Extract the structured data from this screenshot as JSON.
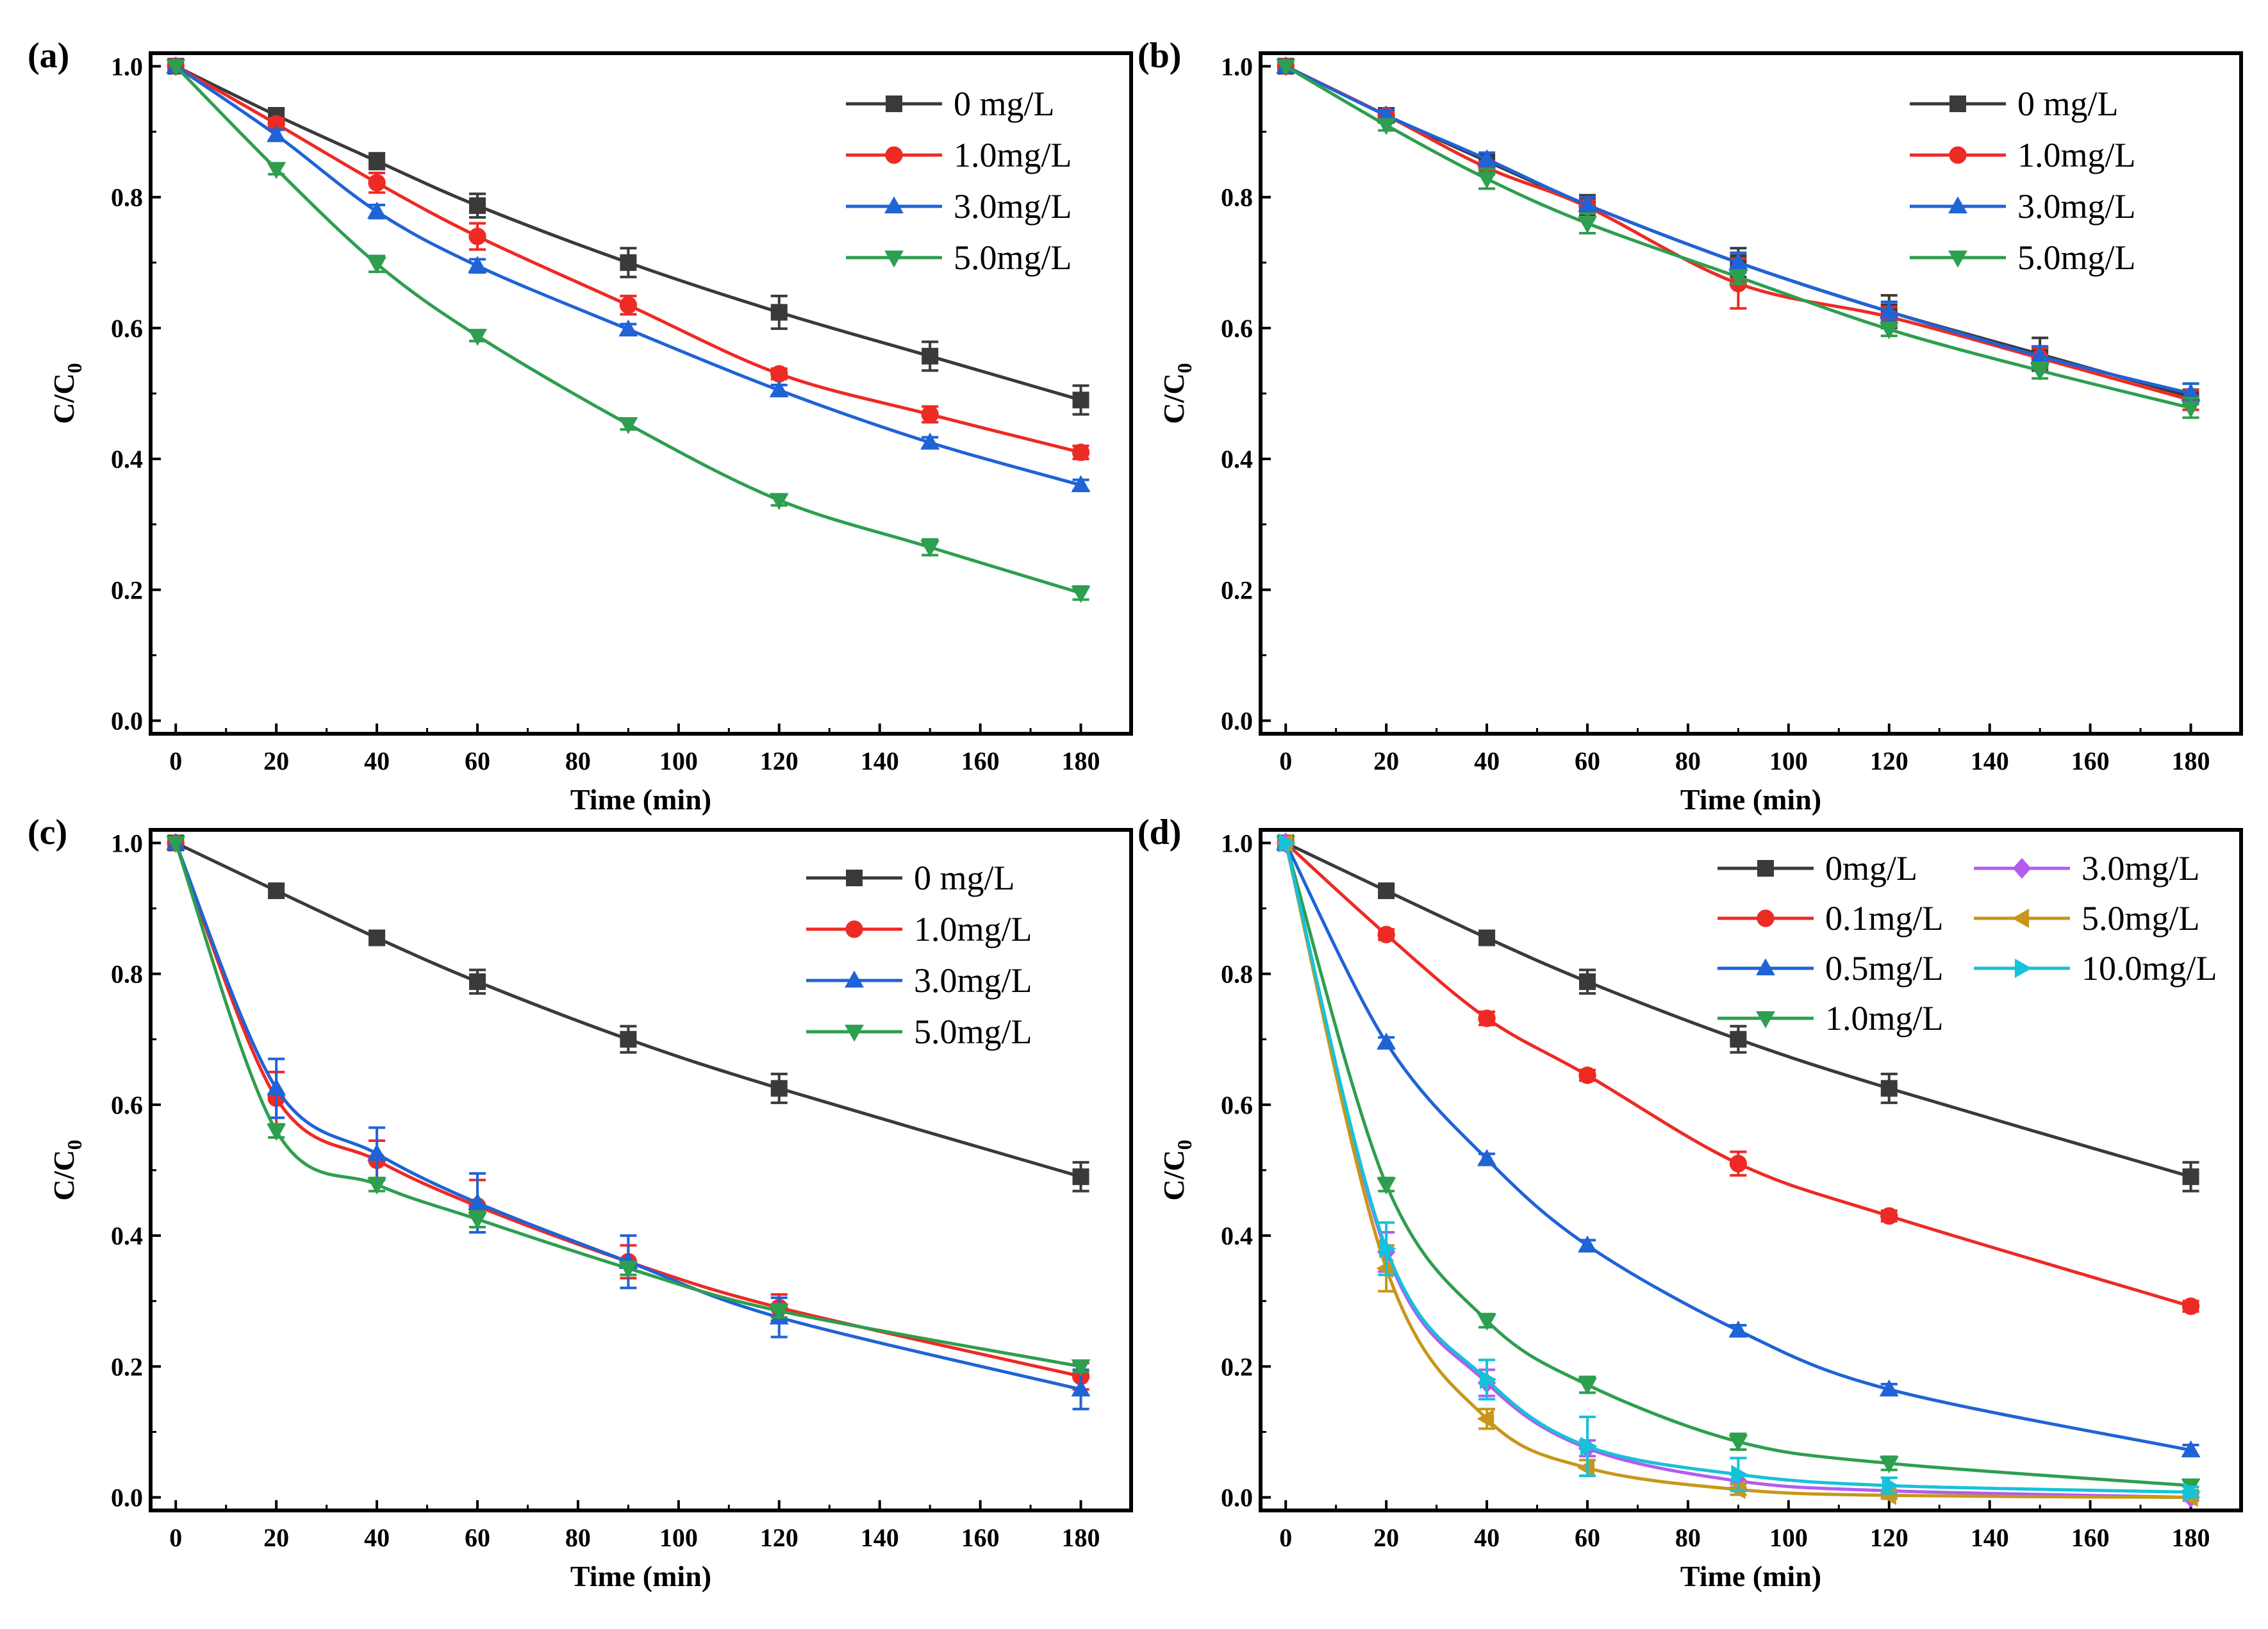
{
  "chart_data": [
    {
      "type": "line",
      "panel_label": "(a)",
      "xlabel": "Time (min)",
      "ylabel": "C/C",
      "ylabel_subscript": "0",
      "xlim": [
        -5,
        190
      ],
      "ylim": [
        -0.02,
        1.02
      ],
      "xticks": [
        0,
        20,
        40,
        60,
        80,
        100,
        120,
        140,
        160,
        180
      ],
      "yticks": [
        0.0,
        0.2,
        0.4,
        0.6,
        0.8,
        1.0
      ],
      "tick_labels_x": [
        "0",
        "20",
        "40",
        "60",
        "80",
        "100",
        "120",
        "140",
        "160",
        "180"
      ],
      "tick_labels_y": [
        "0.0",
        "0.2",
        "0.4",
        "0.6",
        "0.8",
        "1.0"
      ],
      "legend_position": "top-right",
      "legend_columns": 1,
      "x": [
        0,
        20,
        40,
        60,
        90,
        120,
        150,
        180
      ],
      "series": [
        {
          "name": "0 mg/L",
          "marker": "square",
          "color": "#3a3a3a",
          "values": [
            1.0,
            0.925,
            0.855,
            0.787,
            0.7,
            0.624,
            0.557,
            0.49
          ],
          "errors": [
            0,
            0.01,
            0.012,
            0.018,
            0.022,
            0.025,
            0.022,
            0.022
          ]
        },
        {
          "name": "1.0mg/L",
          "marker": "circle",
          "color": "#ee2a24",
          "values": [
            1.0,
            0.912,
            0.822,
            0.74,
            0.635,
            0.53,
            0.468,
            0.41
          ],
          "errors": [
            0,
            0.008,
            0.015,
            0.02,
            0.014,
            0.008,
            0.012,
            0.01
          ]
        },
        {
          "name": "3.0mg/L",
          "marker": "triangle-up",
          "color": "#1f63d6",
          "values": [
            1.0,
            0.895,
            0.778,
            0.695,
            0.598,
            0.505,
            0.425,
            0.36
          ],
          "errors": [
            0,
            0.008,
            0.01,
            0.01,
            0.008,
            0.008,
            0.008,
            0.008
          ]
        },
        {
          "name": "5.0mg/L",
          "marker": "triangle-down",
          "color": "#2e9e4f",
          "values": [
            1.0,
            0.843,
            0.698,
            0.588,
            0.453,
            0.337,
            0.265,
            0.195
          ],
          "errors": [
            0,
            0.008,
            0.012,
            0.008,
            0.008,
            0.008,
            0.012,
            0.01
          ]
        }
      ]
    },
    {
      "type": "line",
      "panel_label": "(b)",
      "xlabel": "Time (min)",
      "ylabel": "C/C",
      "ylabel_subscript": "0",
      "xlim": [
        -5,
        190
      ],
      "ylim": [
        -0.02,
        1.02
      ],
      "xticks": [
        0,
        20,
        40,
        60,
        80,
        100,
        120,
        140,
        160,
        180
      ],
      "yticks": [
        0.0,
        0.2,
        0.4,
        0.6,
        0.8,
        1.0
      ],
      "tick_labels_x": [
        "0",
        "20",
        "40",
        "60",
        "80",
        "100",
        "120",
        "140",
        "160",
        "180"
      ],
      "tick_labels_y": [
        "0.0",
        "0.2",
        "0.4",
        "0.6",
        "0.8",
        "1.0"
      ],
      "legend_position": "top-right",
      "legend_columns": 1,
      "x": [
        0,
        20,
        40,
        60,
        90,
        120,
        150,
        180
      ],
      "series": [
        {
          "name": "0 mg/L",
          "marker": "square",
          "color": "#3a3a3a",
          "values": [
            1.0,
            0.925,
            0.855,
            0.788,
            0.7,
            0.625,
            0.56,
            0.495
          ],
          "errors": [
            0,
            0.008,
            0.01,
            0.015,
            0.022,
            0.025,
            0.025,
            0.02
          ]
        },
        {
          "name": "1.0mg/L",
          "marker": "circle",
          "color": "#ee2a24",
          "values": [
            1.0,
            0.925,
            0.845,
            0.785,
            0.668,
            0.617,
            0.554,
            0.49
          ],
          "errors": [
            0,
            0.008,
            0.01,
            0.01,
            0.038,
            0.015,
            0.015,
            0.015
          ]
        },
        {
          "name": "3.0mg/L",
          "marker": "triangle-up",
          "color": "#1f63d6",
          "values": [
            1.0,
            0.925,
            0.858,
            0.788,
            0.7,
            0.625,
            0.557,
            0.5
          ],
          "errors": [
            0,
            0.008,
            0.01,
            0.012,
            0.015,
            0.015,
            0.015,
            0.015
          ]
        },
        {
          "name": "5.0mg/L",
          "marker": "triangle-down",
          "color": "#2e9e4f",
          "values": [
            1.0,
            0.91,
            0.828,
            0.76,
            0.678,
            0.598,
            0.535,
            0.478
          ],
          "errors": [
            0,
            0.008,
            0.015,
            0.015,
            0.01,
            0.01,
            0.012,
            0.015
          ]
        }
      ]
    },
    {
      "type": "line",
      "panel_label": "(c)",
      "xlabel": "Time (min)",
      "ylabel": "C/C",
      "ylabel_subscript": "0",
      "xlim": [
        -5,
        190
      ],
      "ylim": [
        -0.02,
        1.02
      ],
      "xticks": [
        0,
        20,
        40,
        60,
        80,
        100,
        120,
        140,
        160,
        180
      ],
      "yticks": [
        0.0,
        0.2,
        0.4,
        0.6,
        0.8,
        1.0
      ],
      "tick_labels_x": [
        "0",
        "20",
        "40",
        "60",
        "80",
        "100",
        "120",
        "140",
        "160",
        "180"
      ],
      "tick_labels_y": [
        "0.0",
        "0.2",
        "0.4",
        "0.6",
        "0.8",
        "1.0"
      ],
      "legend_position": "top-right",
      "legend_columns": 1,
      "x": [
        0,
        20,
        40,
        60,
        90,
        120,
        180
      ],
      "series": [
        {
          "name": "0 mg/L",
          "marker": "square",
          "color": "#3a3a3a",
          "values": [
            1.0,
            0.927,
            0.855,
            0.788,
            0.7,
            0.625,
            0.49
          ],
          "errors": [
            0,
            0.008,
            0.01,
            0.018,
            0.02,
            0.022,
            0.022
          ]
        },
        {
          "name": "1.0mg/L",
          "marker": "circle",
          "color": "#ee2a24",
          "values": [
            1.0,
            0.61,
            0.515,
            0.445,
            0.36,
            0.29,
            0.185
          ],
          "errors": [
            0,
            0.04,
            0.03,
            0.04,
            0.025,
            0.02,
            0.02
          ]
        },
        {
          "name": "3.0mg/L",
          "marker": "triangle-up",
          "color": "#1f63d6",
          "values": [
            1.0,
            0.625,
            0.525,
            0.45,
            0.36,
            0.275,
            0.165
          ],
          "errors": [
            0,
            0.045,
            0.04,
            0.045,
            0.04,
            0.03,
            0.03
          ]
        },
        {
          "name": "5.0mg/L",
          "marker": "triangle-down",
          "color": "#2e9e4f",
          "values": [
            1.0,
            0.56,
            0.478,
            0.425,
            0.35,
            0.285,
            0.2
          ],
          "errors": [
            0,
            0.01,
            0.01,
            0.012,
            0.01,
            0.01,
            0.008
          ]
        }
      ]
    },
    {
      "type": "line",
      "panel_label": "(d)",
      "xlabel": "Time (min)",
      "ylabel": "C/C",
      "ylabel_subscript": "0",
      "xlim": [
        -5,
        190
      ],
      "ylim": [
        -0.02,
        1.02
      ],
      "xticks": [
        0,
        20,
        40,
        60,
        80,
        100,
        120,
        140,
        160,
        180
      ],
      "yticks": [
        0.0,
        0.2,
        0.4,
        0.6,
        0.8,
        1.0
      ],
      "tick_labels_x": [
        "0",
        "20",
        "40",
        "60",
        "80",
        "100",
        "120",
        "140",
        "160",
        "180"
      ],
      "tick_labels_y": [
        "0.0",
        "0.2",
        "0.4",
        "0.6",
        "0.8",
        "1.0"
      ],
      "legend_position": "top-right",
      "legend_columns": 2,
      "x": [
        0,
        20,
        40,
        60,
        90,
        120,
        180
      ],
      "series": [
        {
          "name": "0mg/L",
          "marker": "square",
          "color": "#3a3a3a",
          "values": [
            1.0,
            0.927,
            0.855,
            0.788,
            0.7,
            0.625,
            0.49
          ],
          "errors": [
            0,
            0.008,
            0.01,
            0.018,
            0.02,
            0.022,
            0.022
          ]
        },
        {
          "name": "0.1mg/L",
          "marker": "circle",
          "color": "#ee2a24",
          "values": [
            1.0,
            0.86,
            0.732,
            0.645,
            0.51,
            0.43,
            0.292
          ],
          "errors": [
            0,
            0.008,
            0.01,
            0.008,
            0.018,
            0.008,
            0.008
          ]
        },
        {
          "name": "0.5mg/L",
          "marker": "triangle-up",
          "color": "#1f63d6",
          "values": [
            1.0,
            0.695,
            0.517,
            0.385,
            0.255,
            0.165,
            0.072
          ],
          "errors": [
            0,
            0.008,
            0.008,
            0.008,
            0.008,
            0.008,
            0.008
          ]
        },
        {
          "name": "1.0mg/L",
          "marker": "triangle-down",
          "color": "#2e9e4f",
          "values": [
            1.0,
            0.478,
            0.27,
            0.172,
            0.085,
            0.052,
            0.018
          ],
          "errors": [
            0,
            0.01,
            0.01,
            0.012,
            0.012,
            0.01,
            0.008
          ]
        },
        {
          "name": "3.0mg/L",
          "marker": "diamond",
          "color": "#b25cf0",
          "values": [
            1.0,
            0.375,
            0.175,
            0.075,
            0.025,
            0.01,
            0.0
          ],
          "errors": [
            0,
            0.03,
            0.02,
            0.012,
            0.01,
            0.008,
            0.005
          ]
        },
        {
          "name": "5.0mg/L",
          "marker": "triangle-left",
          "color": "#c8961a",
          "values": [
            1.0,
            0.35,
            0.12,
            0.045,
            0.012,
            0.003,
            0.0
          ],
          "errors": [
            0,
            0.035,
            0.015,
            0.012,
            0.008,
            0.005,
            0.003
          ]
        },
        {
          "name": "10.0mg/L",
          "marker": "triangle-right",
          "color": "#16c2d9",
          "values": [
            1.0,
            0.38,
            0.18,
            0.078,
            0.035,
            0.018,
            0.008
          ],
          "errors": [
            0,
            0.04,
            0.03,
            0.045,
            0.025,
            0.012,
            0.008
          ]
        }
      ]
    }
  ]
}
